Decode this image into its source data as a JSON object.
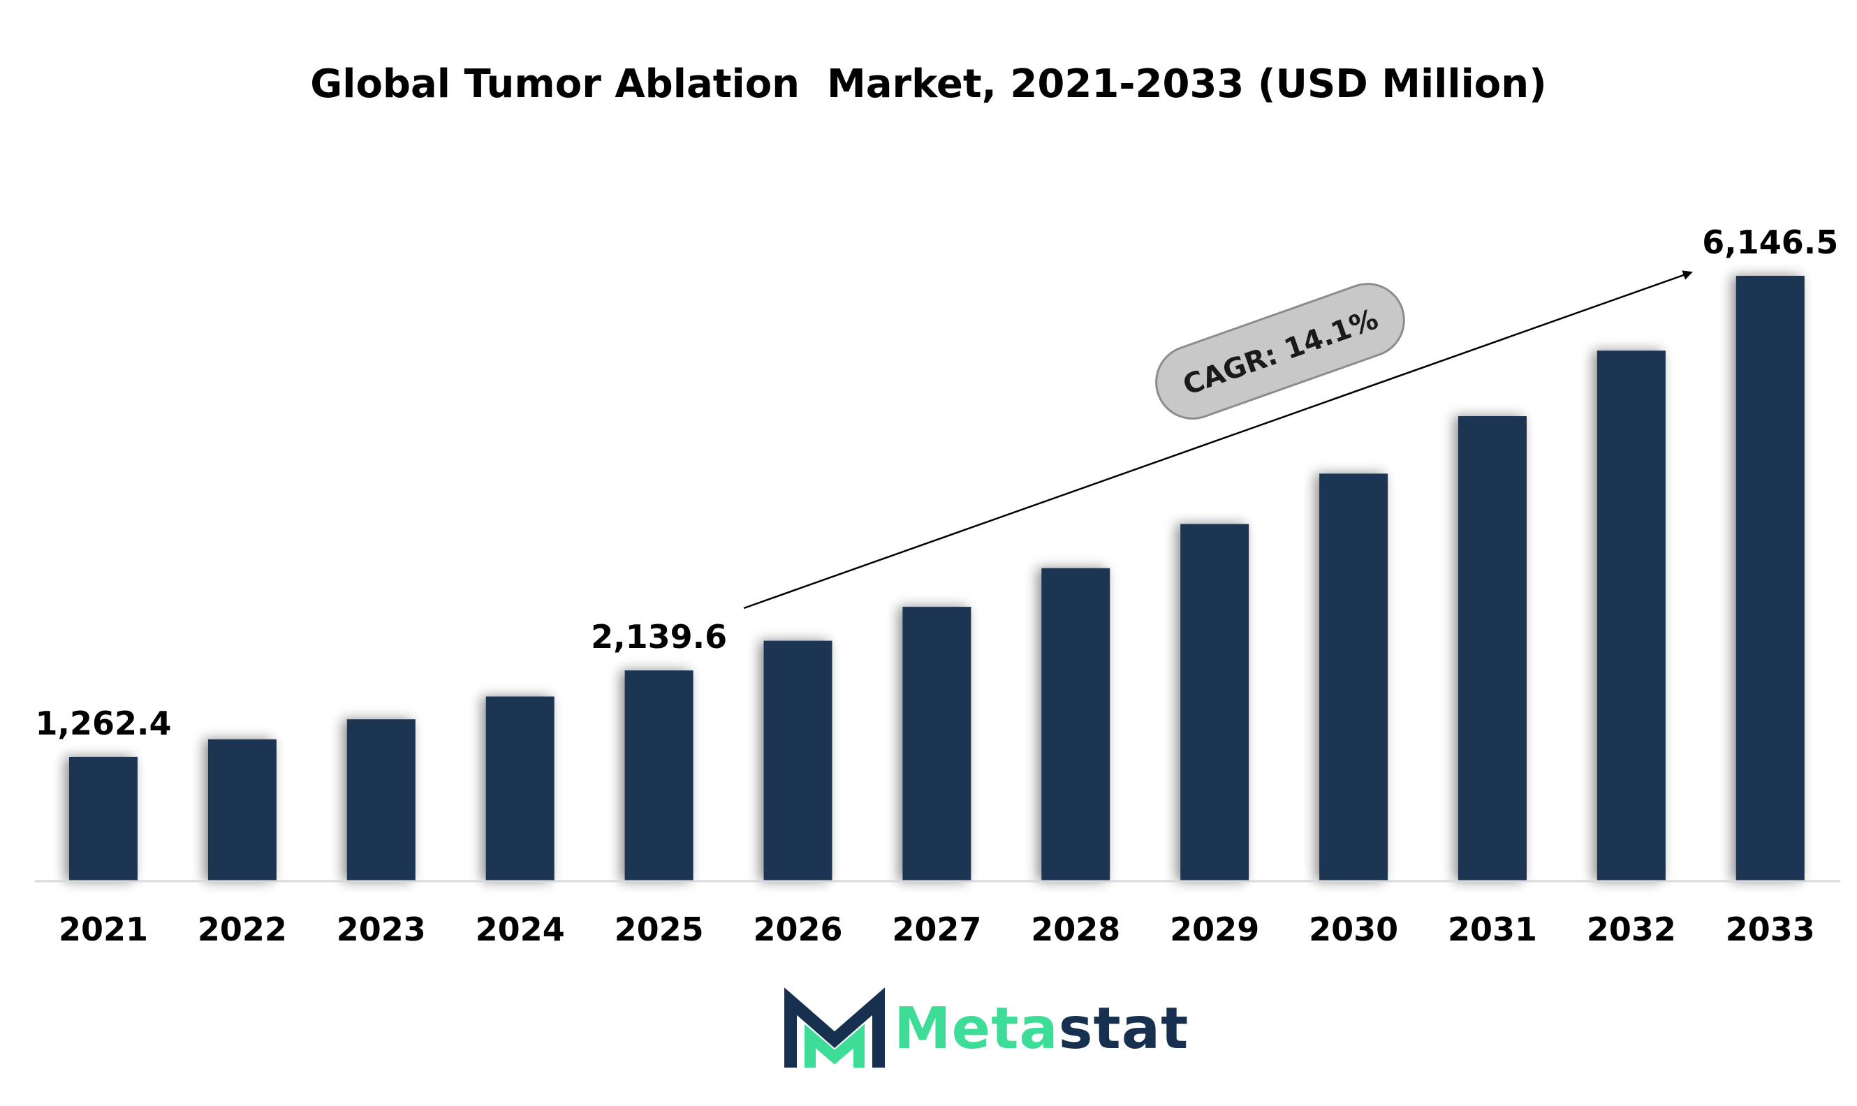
{
  "chart_data": {
    "type": "bar",
    "title": "Global Tumor Ablation  Market, 2021-2033 (USD Million)",
    "categories": [
      "2021",
      "2022",
      "2023",
      "2024",
      "2025",
      "2026",
      "2027",
      "2028",
      "2029",
      "2030",
      "2031",
      "2032",
      "2033"
    ],
    "values": [
      1262.4,
      1440.3,
      1643.4,
      1875.1,
      2139.6,
      2441.3,
      2785.5,
      3178.3,
      3626.5,
      4137.8,
      4721.2,
      5386.9,
      6146.5
    ],
    "data_labels": [
      {
        "category": "2021",
        "text": "1,262.4"
      },
      {
        "category": "2025",
        "text": "2,139.6"
      },
      {
        "category": "2033",
        "text": "6,146.5"
      }
    ],
    "annotation": "CAGR: 14.1%",
    "bar_color": "#1b3452",
    "ylim": [
      0,
      6200
    ],
    "grid": false,
    "legend": "none"
  },
  "brand": {
    "name_part1": "Meta",
    "name_part2": "stat",
    "accent_color": "#3ddc97",
    "dark_color": "#17304f"
  }
}
